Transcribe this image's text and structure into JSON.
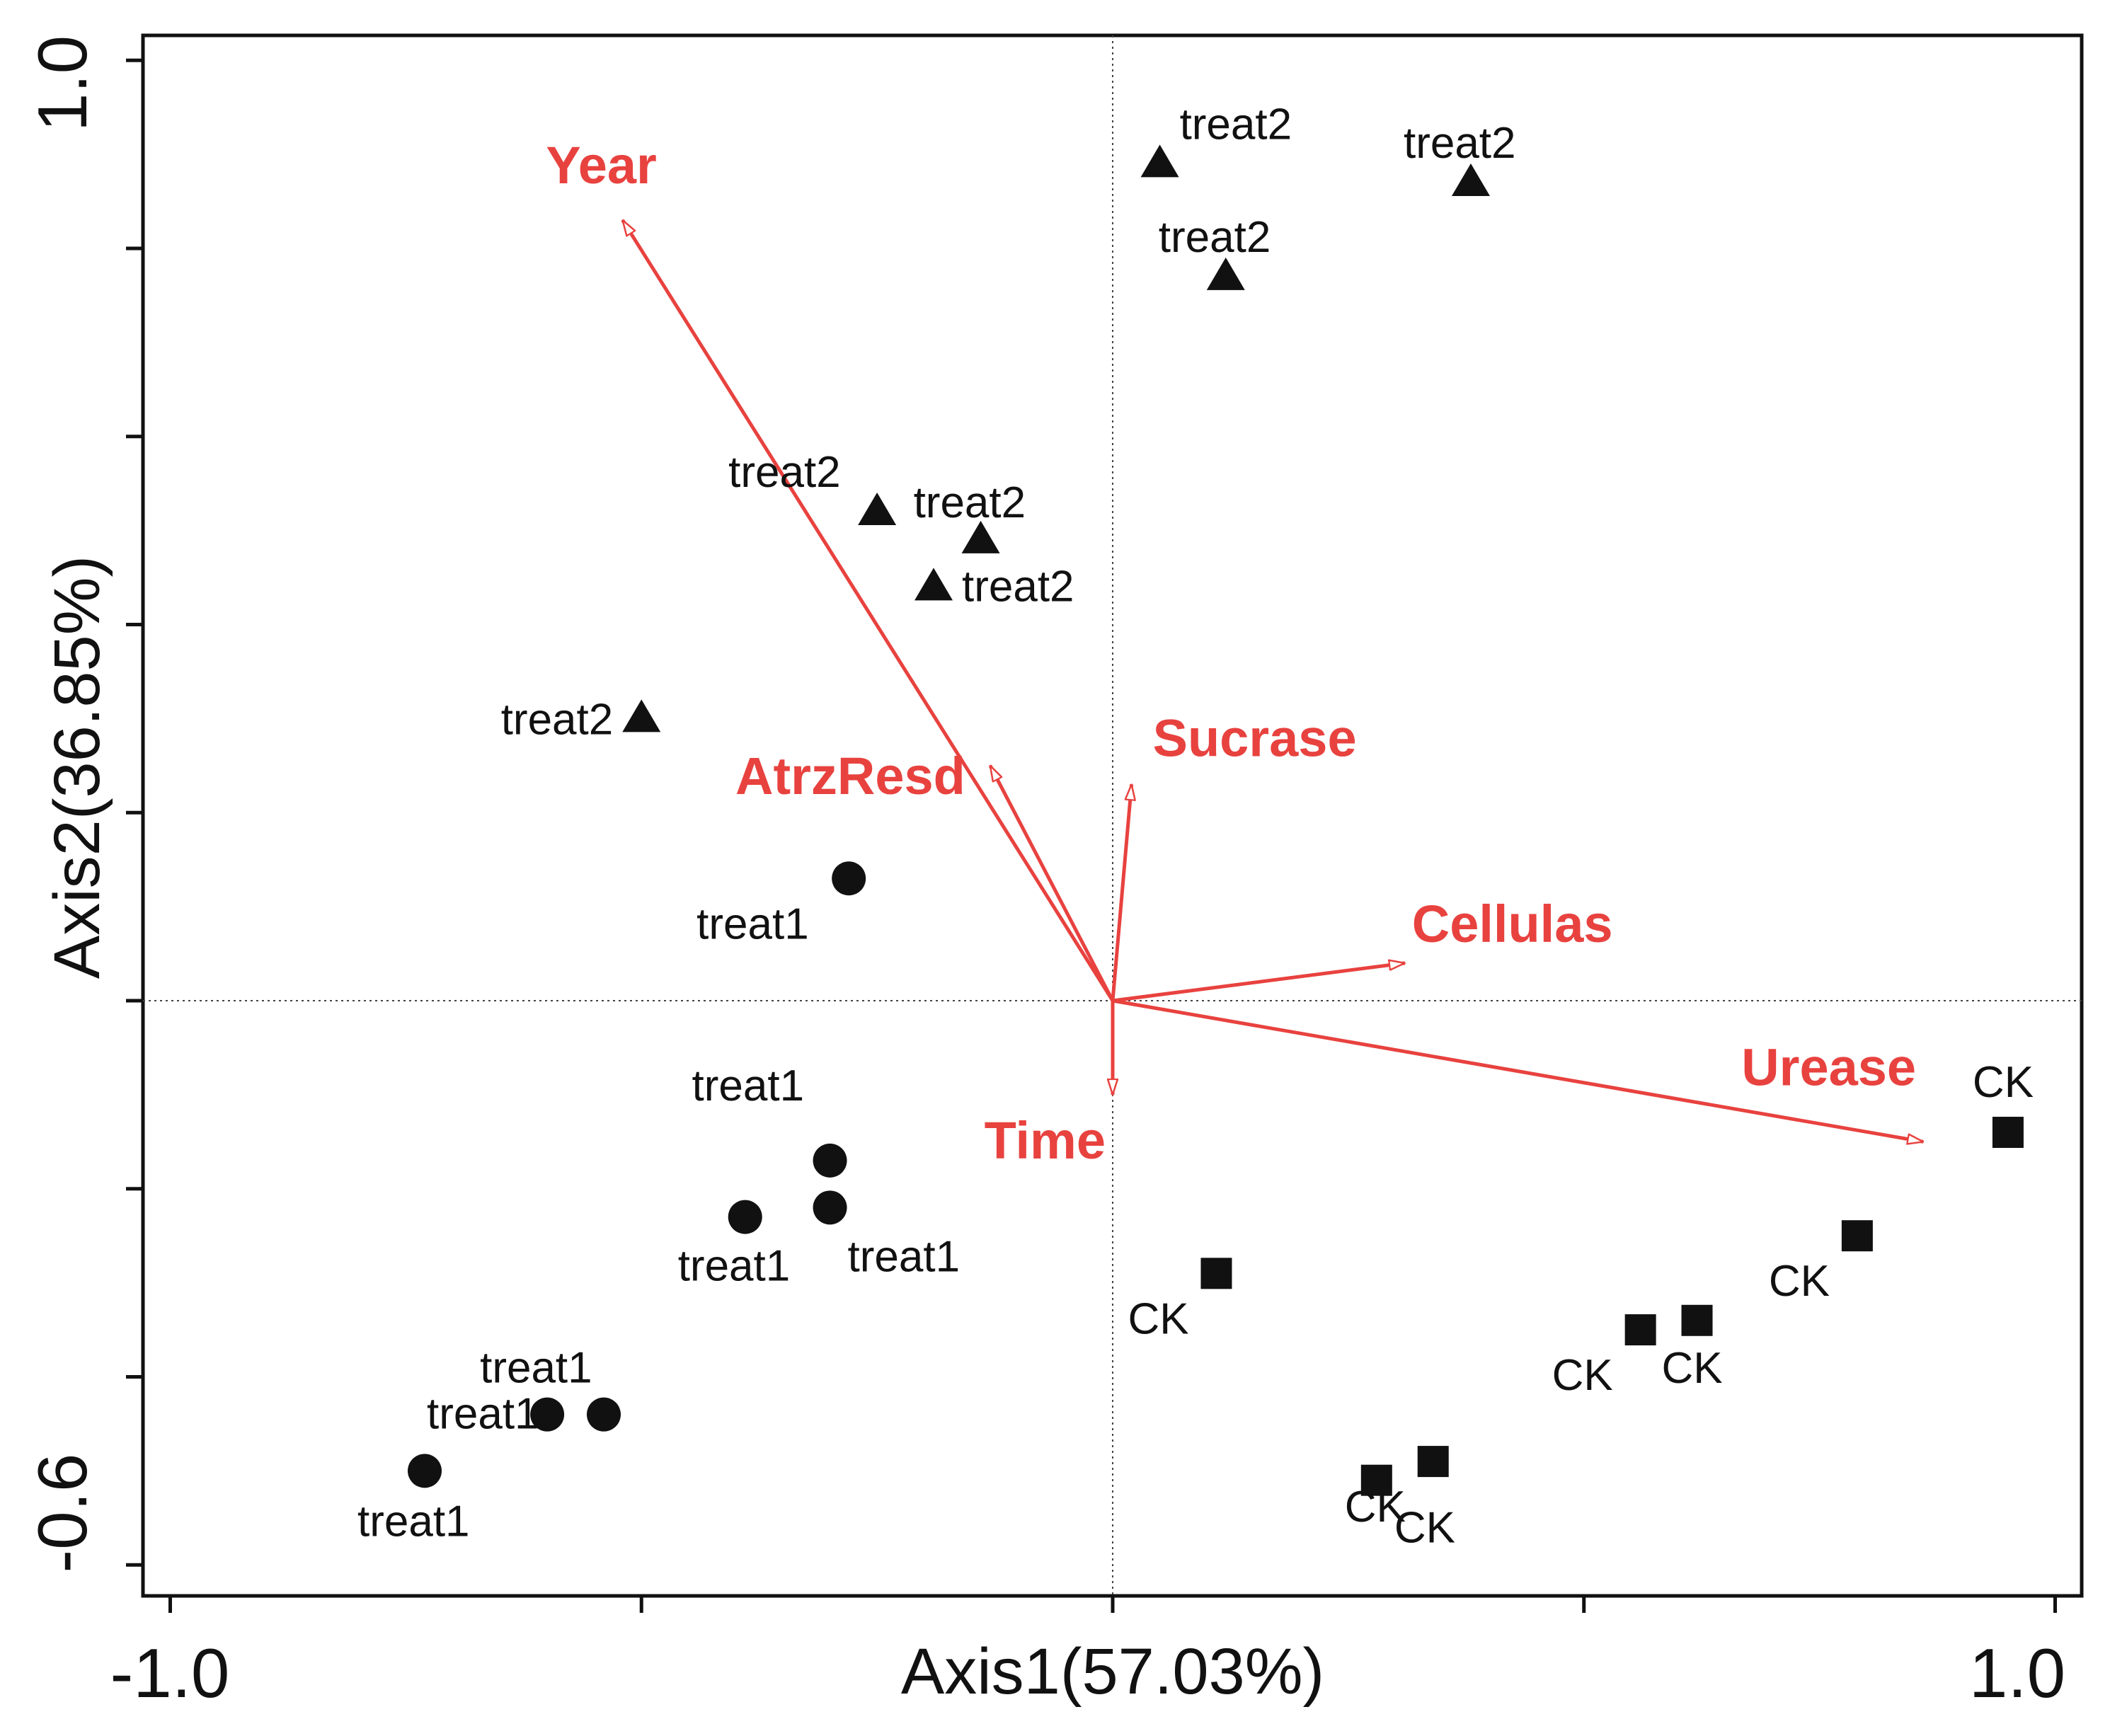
{
  "chart_data": {
    "type": "scatter",
    "subtype": "RDA biplot",
    "xlabel": "Axis1(57.03%)",
    "ylabel": "Axis2(36.85%)",
    "xlim": [
      -1.0,
      1.0
    ],
    "ylim": [
      -0.6,
      1.0
    ],
    "x_tick_labels": [
      "-1.0",
      "1.0"
    ],
    "y_tick_labels": [
      "1.0",
      "-0.6"
    ],
    "x_minor_ticks": [
      -1.0,
      -0.5,
      0.0,
      0.5,
      1.0
    ],
    "y_minor_ticks": [
      -0.6,
      -0.4,
      -0.2,
      0.0,
      0.2,
      0.4,
      0.6,
      0.8,
      1.0
    ],
    "reference_lines": {
      "x": 0.0,
      "y": 0.0
    },
    "colors": {
      "points": "#111111",
      "vectors": "#e8423f",
      "frame": "#111111"
    },
    "series": [
      {
        "name": "treat2",
        "marker": "triangle",
        "points": [
          {
            "x": 0.05,
            "y": 0.89,
            "label": "treat2"
          },
          {
            "x": 0.38,
            "y": 0.87,
            "label": "treat2"
          },
          {
            "x": 0.12,
            "y": 0.77,
            "label": "treat2"
          },
          {
            "x": -0.25,
            "y": 0.52,
            "label": "treat2"
          },
          {
            "x": -0.14,
            "y": 0.49,
            "label": "treat2"
          },
          {
            "x": -0.19,
            "y": 0.44,
            "label": "treat2"
          },
          {
            "x": -0.5,
            "y": 0.3,
            "label": "treat2"
          }
        ]
      },
      {
        "name": "treat1",
        "marker": "circle",
        "points": [
          {
            "x": -0.28,
            "y": 0.13,
            "label": "treat1"
          },
          {
            "x": -0.3,
            "y": -0.17,
            "label": "treat1"
          },
          {
            "x": -0.39,
            "y": -0.23,
            "label": "treat1"
          },
          {
            "x": -0.3,
            "y": -0.22,
            "label": "treat1"
          },
          {
            "x": -0.6,
            "y": -0.44,
            "label": "treat1"
          },
          {
            "x": -0.54,
            "y": -0.44,
            "label": "treat1"
          },
          {
            "x": -0.73,
            "y": -0.5,
            "label": "treat1"
          }
        ]
      },
      {
        "name": "CK",
        "marker": "square",
        "points": [
          {
            "x": 0.95,
            "y": -0.14,
            "label": "CK"
          },
          {
            "x": 0.79,
            "y": -0.25,
            "label": "CK"
          },
          {
            "x": 0.11,
            "y": -0.29,
            "label": "CK"
          },
          {
            "x": 0.56,
            "y": -0.35,
            "label": "CK"
          },
          {
            "x": 0.62,
            "y": -0.34,
            "label": "CK"
          },
          {
            "x": 0.34,
            "y": -0.49,
            "label": "CK"
          },
          {
            "x": 0.28,
            "y": -0.51,
            "label": "CK"
          }
        ]
      }
    ],
    "vectors": [
      {
        "name": "Year",
        "x": -0.52,
        "y": 0.83
      },
      {
        "name": "AtrzResd",
        "x": -0.13,
        "y": 0.25
      },
      {
        "name": "Sucrase",
        "x": 0.02,
        "y": 0.23
      },
      {
        "name": "Cellulas",
        "x": 0.31,
        "y": 0.04
      },
      {
        "name": "Urease",
        "x": 0.86,
        "y": -0.15
      },
      {
        "name": "Time",
        "x": 0.0,
        "y": -0.1
      }
    ]
  }
}
